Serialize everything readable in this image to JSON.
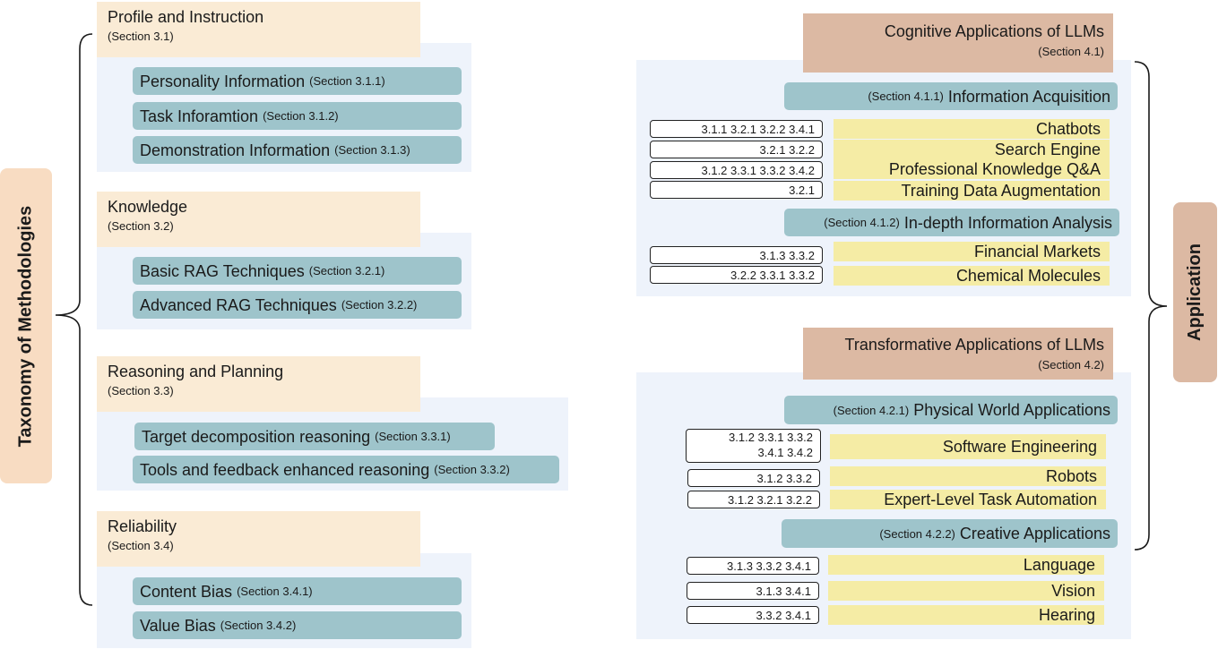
{
  "left": {
    "title": "Taxonomy of Methodologies",
    "groups": [
      {
        "title": "Profile and Instruction",
        "section": "(Section 3.1)",
        "items": [
          {
            "label": "Personality Information",
            "section": "(Section 3.1.1)"
          },
          {
            "label": "Task Inforamtion",
            "section": "(Section 3.1.2)"
          },
          {
            "label": "Demonstration Information",
            "section": "(Section 3.1.3)"
          }
        ]
      },
      {
        "title": "Knowledge",
        "section": "(Section 3.2)",
        "items": [
          {
            "label": "Basic RAG Techniques",
            "section": "(Section 3.2.1)"
          },
          {
            "label": "Advanced RAG Techniques",
            "section": "(Section 3.2.2)"
          }
        ]
      },
      {
        "title": "Reasoning and Planning",
        "section": "(Section 3.3)",
        "items": [
          {
            "label": "Target decomposition reasoning",
            "section": "(Section 3.3.1)"
          },
          {
            "label": "Tools and feedback enhanced reasoning",
            "section": "(Section 3.3.2)"
          }
        ]
      },
      {
        "title": "Reliability",
        "section": "(Section 3.4)",
        "items": [
          {
            "label": "Content Bias",
            "section": "(Section 3.4.1)"
          },
          {
            "label": "Value Bias",
            "section": "(Section 3.4.2)"
          }
        ]
      }
    ]
  },
  "right": {
    "title": "Application",
    "cognitive": {
      "title": "Cognitive Applications of LLMs",
      "section": "(Section 4.1)",
      "sub1": {
        "section": "(Section 4.1.1)",
        "label": "Information Acquisition",
        "rows": [
          {
            "refs": "3.1.1  3.2.1  3.2.2  3.4.1",
            "label": "Chatbots"
          },
          {
            "refs": "3.2.1  3.2.2",
            "label": "Search Engine"
          },
          {
            "refs": "3.1.2  3.3.1 3.3.2  3.4.2",
            "label": "Professional Knowledge Q&A"
          },
          {
            "refs": "3.2.1",
            "label": "Training Data Augmentation"
          }
        ]
      },
      "sub2": {
        "section": "(Section 4.1.2)",
        "label": "In-depth Information Analysis",
        "rows": [
          {
            "refs": "3.1.3  3.3.2",
            "label": "Financial Markets"
          },
          {
            "refs": "3.2.2 3.3.1 3.3.2",
            "label": "Chemical Molecules"
          }
        ]
      }
    },
    "transformative": {
      "title": "Transformative Applications of LLMs",
      "section": "(Section 4.2)",
      "sub1": {
        "section": "(Section 4.2.1)",
        "label": "Physical World Applications",
        "rows": [
          {
            "refs_line1": "3.1.2  3.3.1  3.3.2",
            "refs_line2": "3.4.1  3.4.2",
            "label": "Software Engineering"
          },
          {
            "refs": "3.1.2  3.3.2",
            "label": "Robots"
          },
          {
            "refs": "3.1.2  3.2.1  3.2.2",
            "label": "Expert-Level Task Automation"
          }
        ]
      },
      "sub2": {
        "section": "(Section 4.2.2)",
        "label": "Creative Applications",
        "rows": [
          {
            "refs": "3.1.3  3.3.2  3.4.1",
            "label": "Language"
          },
          {
            "refs": "3.1.3  3.4.1",
            "label": "Vision"
          },
          {
            "refs": "3.3.2  3.4.1",
            "label": "Hearing"
          }
        ]
      }
    }
  },
  "colors": {
    "blue_bg": "#eef3fb",
    "peach": "#faebd5",
    "teal": "#9ec4cb",
    "tan": "#dcb9a3",
    "yellow": "#f5eca5",
    "label_peach": "#f8dcc2"
  }
}
